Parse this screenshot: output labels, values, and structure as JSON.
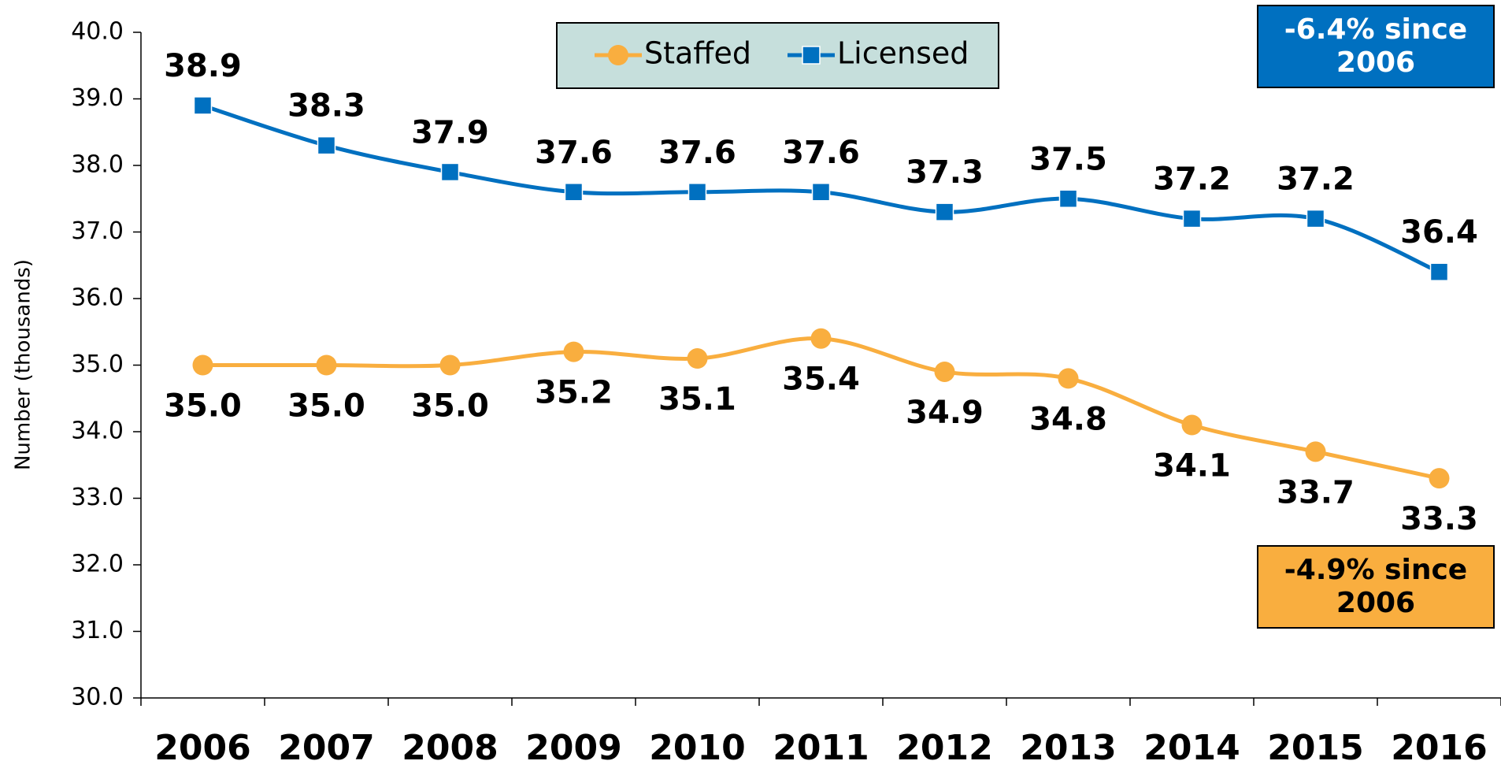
{
  "chart_data": {
    "type": "line",
    "y_axis_label": "Number (thousands)",
    "categories": [
      "2006",
      "2007",
      "2008",
      "2009",
      "2010",
      "2011",
      "2012",
      "2013",
      "2014",
      "2015",
      "2016"
    ],
    "series": [
      {
        "name": "Staffed",
        "color": "#f9ae3f",
        "marker": "circle",
        "values": [
          35.0,
          35.0,
          35.0,
          35.2,
          35.1,
          35.4,
          34.9,
          34.8,
          34.1,
          33.7,
          33.3
        ],
        "value_labels": [
          "35.0",
          "35.0",
          "35.0",
          "35.2",
          "35.1",
          "35.4",
          "34.9",
          "34.8",
          "34.1",
          "33.7",
          "33.3"
        ]
      },
      {
        "name": "Licensed",
        "color": "#0070c0",
        "marker": "square",
        "values": [
          38.9,
          38.3,
          37.9,
          37.6,
          37.6,
          37.6,
          37.3,
          37.5,
          37.2,
          37.2,
          36.4
        ],
        "value_labels": [
          "38.9",
          "38.3",
          "37.9",
          "37.6",
          "37.6",
          "37.6",
          "37.3",
          "37.5",
          "37.2",
          "37.2",
          "36.4"
        ]
      }
    ],
    "ylim": [
      30,
      40
    ],
    "yticks": [
      {
        "value": 30,
        "label": "30.0"
      },
      {
        "value": 31,
        "label": "31.0"
      },
      {
        "value": 32,
        "label": "32.0"
      },
      {
        "value": 33,
        "label": "33.0"
      },
      {
        "value": 34,
        "label": "34.0"
      },
      {
        "value": 35,
        "label": "35.0"
      },
      {
        "value": 36,
        "label": "36.0"
      },
      {
        "value": 37,
        "label": "37.0"
      },
      {
        "value": 38,
        "label": "38.0"
      },
      {
        "value": 39,
        "label": "39.0"
      },
      {
        "value": 40,
        "label": "40.0"
      }
    ],
    "grid": false,
    "legend_position": "top",
    "annotations": [
      {
        "text": "-6.4% since 2006",
        "color": "#0070c0"
      },
      {
        "text": "-4.9% since 2006",
        "color": "#f9ae3f"
      }
    ]
  }
}
